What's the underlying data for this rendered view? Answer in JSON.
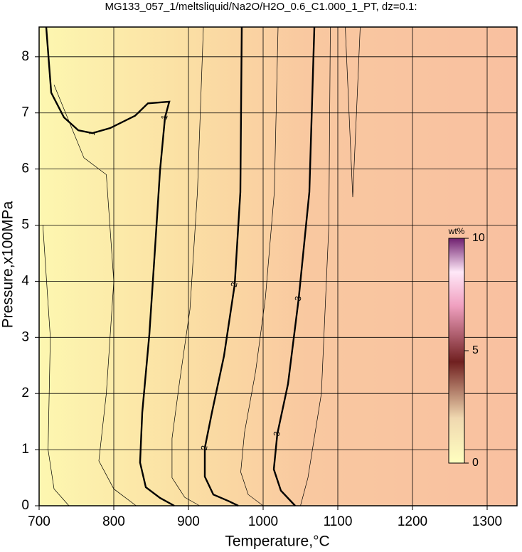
{
  "chart_data": {
    "type": "contour",
    "title": "MG133_057_1/meltsliquid/Na2O/H2O_0.6_C1.000_1_PT, dz=0.1:",
    "x_label": "Temperature,°C",
    "y_label": "Pressure,x100MPa",
    "xlim": [
      700,
      1340
    ],
    "ylim": [
      0,
      8.53
    ],
    "xticks": [
      700,
      800,
      900,
      1000,
      1100,
      1200,
      1300
    ],
    "yticks": [
      0,
      1,
      2,
      3,
      4,
      5,
      6,
      7,
      8
    ],
    "grid": true,
    "colorbar": {
      "label": "wt%",
      "lim": [
        0,
        10
      ],
      "ticks": [
        0,
        5,
        10
      ]
    },
    "contours": [
      {
        "level": 1,
        "labeled": true,
        "x": [
          709.5,
          716.2,
          733.3,
          752.4,
          771.4,
          795.2,
          828.6,
          845.7,
          874.3,
          868.6,
          861.9,
          855.2,
          847.6,
          838.1,
          835.2,
          842.9,
          861.9,
          881
        ],
        "y": [
          8.53,
          7.36,
          6.92,
          6.69,
          6.64,
          6.73,
          6.95,
          7.17,
          7.2,
          6.92,
          5.97,
          4.58,
          3.05,
          1.66,
          0.77,
          0.33,
          0.14,
          0
        ]
      },
      {
        "level": 2,
        "labeled": true,
        "x": [
          971.4,
          969.5,
          961.9,
          947.6,
          931.4,
          921.9,
          921.9,
          933.3,
          954.3,
          966.7
        ],
        "y": [
          8.53,
          5.59,
          3.94,
          2.67,
          1.66,
          1.03,
          0.52,
          0.2,
          0.08,
          0
        ]
      },
      {
        "level": 3,
        "labeled": true,
        "x": [
          1068.6,
          1061.9,
          1047.6,
          1033.3,
          1019,
          1014.3,
          1023.8,
          1042.9
        ],
        "y": [
          8.53,
          5.59,
          3.69,
          2.17,
          1.28,
          0.65,
          0.27,
          0
        ]
      },
      {
        "level": 0.2,
        "labeled": false,
        "x": [
          705,
          715,
          712,
          720,
          740
        ],
        "y": [
          5,
          3,
          1,
          0.3,
          0
        ]
      },
      {
        "level": 0.5,
        "labeled": false,
        "x": [
          720,
          760,
          790,
          800,
          790,
          780,
          800,
          830
        ],
        "y": [
          7.5,
          6.2,
          5.9,
          4,
          2,
          0.8,
          0.3,
          0
        ]
      },
      {
        "level": 1.5,
        "labeled": false,
        "x": [
          920,
          912,
          902,
          888,
          878,
          878,
          895,
          915
        ],
        "y": [
          8.53,
          5.59,
          3.5,
          2.2,
          1.2,
          0.5,
          0.15,
          0
        ]
      },
      {
        "level": 2.5,
        "labeled": false,
        "x": [
          1020,
          1015,
          1003,
          990,
          975,
          970,
          980,
          1000
        ],
        "y": [
          8.53,
          5.59,
          3.7,
          2.4,
          1.3,
          0.6,
          0.2,
          0
        ]
      },
      {
        "level": 3.2,
        "labeled": false,
        "x": [
          1090,
          1088,
          1078,
          1060,
          1050
        ],
        "y": [
          8.53,
          5,
          2,
          0.5,
          0
        ]
      },
      {
        "level": 3.3,
        "labeled": false,
        "x": [
          1110,
          1120,
          1125,
          1130
        ],
        "y": [
          8.53,
          5.5,
          7,
          8.53
        ]
      }
    ]
  }
}
